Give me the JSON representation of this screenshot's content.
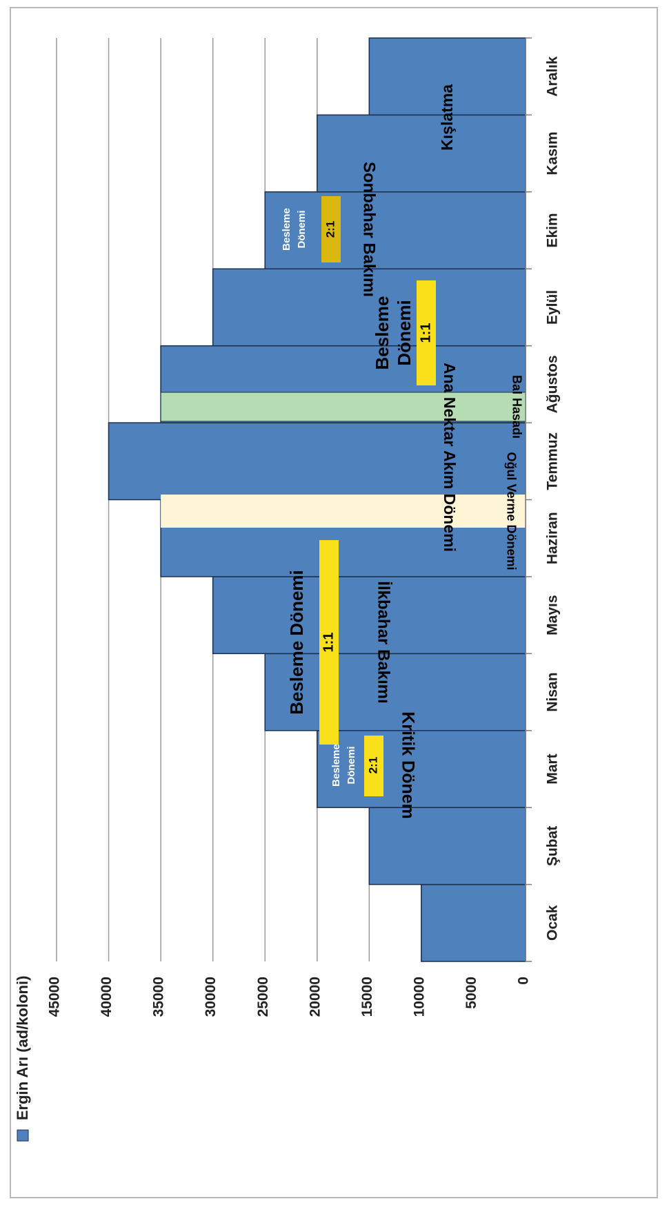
{
  "chart_data": {
    "type": "bar",
    "orientation": "rotated-90",
    "legend": {
      "label": "Ergin Arı (ad/koloni)",
      "color": "#4f81bd",
      "position": "top-left"
    },
    "categories": [
      "Ocak",
      "Şubat",
      "Mart",
      "Nisan",
      "Mayıs",
      "Haziran",
      "Temmuz",
      "Ağustos",
      "Eylül",
      "Ekim",
      "Kasım",
      "Aralık"
    ],
    "series": [
      {
        "name": "Ergin Arı (ad/koloni)",
        "values": [
          10000,
          15000,
          20000,
          25000,
          30000,
          35000,
          40000,
          35000,
          30000,
          25000,
          20000,
          15000
        ]
      }
    ],
    "ylim": [
      0,
      45000
    ],
    "yticks": [
      0,
      5000,
      10000,
      15000,
      20000,
      25000,
      30000,
      35000,
      40000,
      45000
    ],
    "ytick_labels": [
      "0",
      "5000",
      "10000",
      "15000",
      "20000",
      "25000",
      "30000",
      "35000",
      "40000",
      "45000"
    ],
    "grid": true,
    "bar_color": "#4f81bd",
    "annotations": {
      "kritik_donem": "Kritik Dönem",
      "besleme_mart_1": "Besleme",
      "besleme_mart_2": "Dönemi",
      "ratio_mart": "2:1",
      "ilkbahar": "İlkbahar Bakımı",
      "besleme_ilkbahar": "Besleme Dönemi",
      "ratio_ilkbahar": "1:1",
      "ogul": "Oğul Verme Dönemi",
      "ana_nektar": "Ana Nektar Akım Dönemi",
      "bal_hasadi": "Bal Hasadı",
      "besleme_yaz_1": "Besleme",
      "besleme_yaz_2": "Dönemi",
      "ratio_yaz": "1:1",
      "besleme_ekim_1": "Besleme",
      "besleme_ekim_2": "Dönemi",
      "ratio_ekim": "2:1",
      "sonbahar": "Sonbahar Bakımı",
      "kislatma": "Kışlatma"
    },
    "band_colors": {
      "ogul": "#fdf5d6",
      "bal_hasadi": "#b6dcb3",
      "yellow": "#f9e01b",
      "gold": "#d9b80f"
    }
  }
}
